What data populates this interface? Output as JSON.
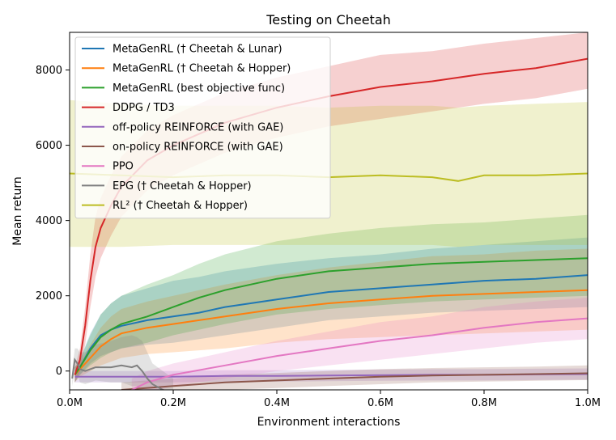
{
  "chart_data": {
    "type": "line",
    "title": "Testing on Cheetah",
    "xlabel": "Environment interactions",
    "ylabel": "Mean return",
    "xlim": [
      0.0,
      1.0
    ],
    "ylim": [
      -500,
      9000
    ],
    "x_ticks": [
      0.0,
      0.2,
      0.4,
      0.6,
      0.8,
      1.0
    ],
    "x_tick_labels": [
      "0.0M",
      "0.2M",
      "0.4M",
      "0.6M",
      "0.8M",
      "1.0M"
    ],
    "y_ticks": [
      0,
      2000,
      4000,
      6000,
      8000
    ],
    "y_tick_labels": [
      "0",
      "2000",
      "4000",
      "6000",
      "8000"
    ],
    "legend_position": "top-left",
    "series": [
      {
        "name": "MetaGenRL († Cheetah & Lunar)",
        "color": "#1f77b4",
        "x": [
          0.01,
          0.02,
          0.04,
          0.06,
          0.08,
          0.1,
          0.15,
          0.2,
          0.25,
          0.3,
          0.4,
          0.5,
          0.6,
          0.7,
          0.8,
          0.9,
          1.0
        ],
        "y": [
          -100,
          100,
          600,
          950,
          1100,
          1200,
          1350,
          1450,
          1550,
          1700,
          1900,
          2100,
          2200,
          2300,
          2400,
          2450,
          2550
        ],
        "lower": [
          -300,
          -100,
          200,
          400,
          500,
          600,
          700,
          750,
          850,
          950,
          1150,
          1350,
          1450,
          1550,
          1600,
          1650,
          1700
        ],
        "upper": [
          100,
          300,
          1000,
          1500,
          1800,
          2000,
          2200,
          2400,
          2500,
          2650,
          2850,
          3000,
          3100,
          3250,
          3350,
          3450,
          3550
        ]
      },
      {
        "name": "MetaGenRL († Cheetah & Hopper)",
        "color": "#ff7f0e",
        "x": [
          0.01,
          0.02,
          0.04,
          0.06,
          0.08,
          0.1,
          0.15,
          0.2,
          0.25,
          0.3,
          0.4,
          0.5,
          0.6,
          0.7,
          0.8,
          0.9,
          1.0
        ],
        "y": [
          -100,
          50,
          350,
          650,
          850,
          1000,
          1150,
          1250,
          1350,
          1450,
          1650,
          1800,
          1900,
          2000,
          2050,
          2100,
          2150
        ],
        "lower": [
          -300,
          -150,
          0,
          150,
          250,
          350,
          450,
          500,
          550,
          600,
          750,
          850,
          900,
          950,
          1000,
          1050,
          1100
        ],
        "upper": [
          100,
          250,
          700,
          1150,
          1450,
          1650,
          1850,
          2000,
          2150,
          2300,
          2550,
          2750,
          2900,
          3050,
          3100,
          3200,
          3250
        ]
      },
      {
        "name": "MetaGenRL (best objective func)",
        "color": "#2ca02c",
        "x": [
          0.01,
          0.02,
          0.04,
          0.06,
          0.08,
          0.1,
          0.15,
          0.2,
          0.25,
          0.3,
          0.4,
          0.5,
          0.6,
          0.7,
          0.8,
          0.9,
          1.0
        ],
        "y": [
          -100,
          100,
          550,
          900,
          1100,
          1250,
          1450,
          1700,
          1950,
          2150,
          2450,
          2650,
          2750,
          2850,
          2900,
          2950,
          3000
        ],
        "lower": [
          -300,
          -100,
          150,
          350,
          500,
          600,
          750,
          950,
          1100,
          1250,
          1500,
          1650,
          1750,
          1850,
          1900,
          1950,
          2000
        ],
        "upper": [
          100,
          300,
          950,
          1500,
          1800,
          2000,
          2300,
          2550,
          2850,
          3100,
          3450,
          3650,
          3800,
          3900,
          3950,
          4050,
          4150
        ]
      },
      {
        "name": "DDPG / TD3",
        "color": "#d62728",
        "x": [
          0.01,
          0.02,
          0.03,
          0.04,
          0.05,
          0.06,
          0.08,
          0.1,
          0.15,
          0.2,
          0.25,
          0.3,
          0.4,
          0.5,
          0.6,
          0.7,
          0.8,
          0.9,
          1.0
        ],
        "y": [
          -100,
          300,
          1200,
          2400,
          3300,
          3800,
          4400,
          4900,
          5600,
          6000,
          6300,
          6600,
          7000,
          7300,
          7550,
          7700,
          7900,
          8050,
          8300
        ],
        "lower": [
          -300,
          0,
          700,
          1700,
          2500,
          3000,
          3600,
          4100,
          4800,
          5200,
          5500,
          5800,
          6200,
          6500,
          6700,
          6900,
          7100,
          7250,
          7500
        ],
        "upper": [
          100,
          600,
          1700,
          3100,
          4100,
          4600,
          5200,
          5700,
          6400,
          6800,
          7100,
          7400,
          7800,
          8100,
          8400,
          8500,
          8700,
          8850,
          9000
        ]
      },
      {
        "name": "off-policy REINFORCE (with GAE)",
        "color": "#9467bd",
        "x": [
          0.01,
          0.05,
          0.1,
          0.2,
          0.3,
          0.4,
          0.5,
          0.6,
          0.7,
          0.8,
          0.9,
          1.0
        ],
        "y": [
          -150,
          -150,
          -150,
          -150,
          -130,
          -130,
          -120,
          -110,
          -100,
          -100,
          -90,
          -80
        ],
        "lower": [
          -300,
          -300,
          -300,
          -300,
          -280,
          -280,
          -270,
          -260,
          -250,
          -250,
          -240,
          -230
        ],
        "upper": [
          0,
          0,
          0,
          0,
          20,
          20,
          30,
          40,
          50,
          50,
          60,
          70
        ]
      },
      {
        "name": "on-policy REINFORCE (with GAE)",
        "color": "#8c564b",
        "x": [
          0.1,
          0.2,
          0.3,
          0.4,
          0.5,
          0.6,
          0.7,
          0.8,
          0.9,
          1.0
        ],
        "y": [
          -500,
          -400,
          -300,
          -250,
          -200,
          -150,
          -120,
          -100,
          -80,
          -60
        ],
        "lower": [
          -700,
          -600,
          -500,
          -450,
          -400,
          -350,
          -300,
          -280,
          -260,
          -240
        ],
        "upper": [
          -300,
          -200,
          -100,
          -50,
          0,
          50,
          80,
          100,
          120,
          150
        ]
      },
      {
        "name": "PPO",
        "color": "#e377c2",
        "x": [
          0.12,
          0.15,
          0.2,
          0.3,
          0.4,
          0.5,
          0.6,
          0.7,
          0.8,
          0.9,
          1.0
        ],
        "y": [
          -500,
          -300,
          -100,
          150,
          400,
          600,
          800,
          950,
          1150,
          1300,
          1400
        ],
        "lower": [
          -800,
          -600,
          -400,
          -200,
          0,
          150,
          300,
          450,
          600,
          750,
          850
        ],
        "upper": [
          -200,
          0,
          200,
          500,
          800,
          1050,
          1300,
          1450,
          1700,
          1850,
          1950
        ]
      },
      {
        "name": "EPG († Cheetah & Hopper)",
        "color": "#7f7f7f",
        "x": [
          0.005,
          0.01,
          0.015,
          0.02,
          0.03,
          0.05,
          0.08,
          0.1,
          0.12,
          0.13,
          0.14,
          0.15,
          0.16,
          0.18,
          0.2
        ],
        "y": [
          -200,
          300,
          200,
          50,
          0,
          100,
          100,
          150,
          100,
          150,
          0,
          -200,
          -350,
          -500,
          -600
        ],
        "lower": [
          -400,
          0,
          -100,
          -300,
          -350,
          -250,
          -300,
          -300,
          -400,
          -400,
          -500,
          -700,
          -800,
          -900,
          -1000
        ],
        "upper": [
          0,
          600,
          600,
          500,
          500,
          700,
          800,
          900,
          950,
          900,
          800,
          500,
          200,
          0,
          -200
        ]
      },
      {
        "name": "RL² († Cheetah & Hopper)",
        "color": "#bcbd22",
        "x": [
          0.0,
          0.1,
          0.2,
          0.3,
          0.4,
          0.5,
          0.6,
          0.7,
          0.75,
          0.8,
          0.9,
          1.0
        ],
        "y": [
          5250,
          5200,
          5150,
          5200,
          5200,
          5150,
          5200,
          5150,
          5050,
          5200,
          5200,
          5250
        ],
        "lower": [
          3300,
          3300,
          3350,
          3350,
          3350,
          3350,
          3350,
          3350,
          3300,
          3350,
          3350,
          3350
        ],
        "upper": [
          7200,
          7100,
          7050,
          7050,
          7050,
          7000,
          7050,
          7050,
          7000,
          7050,
          7100,
          7150
        ]
      }
    ]
  }
}
